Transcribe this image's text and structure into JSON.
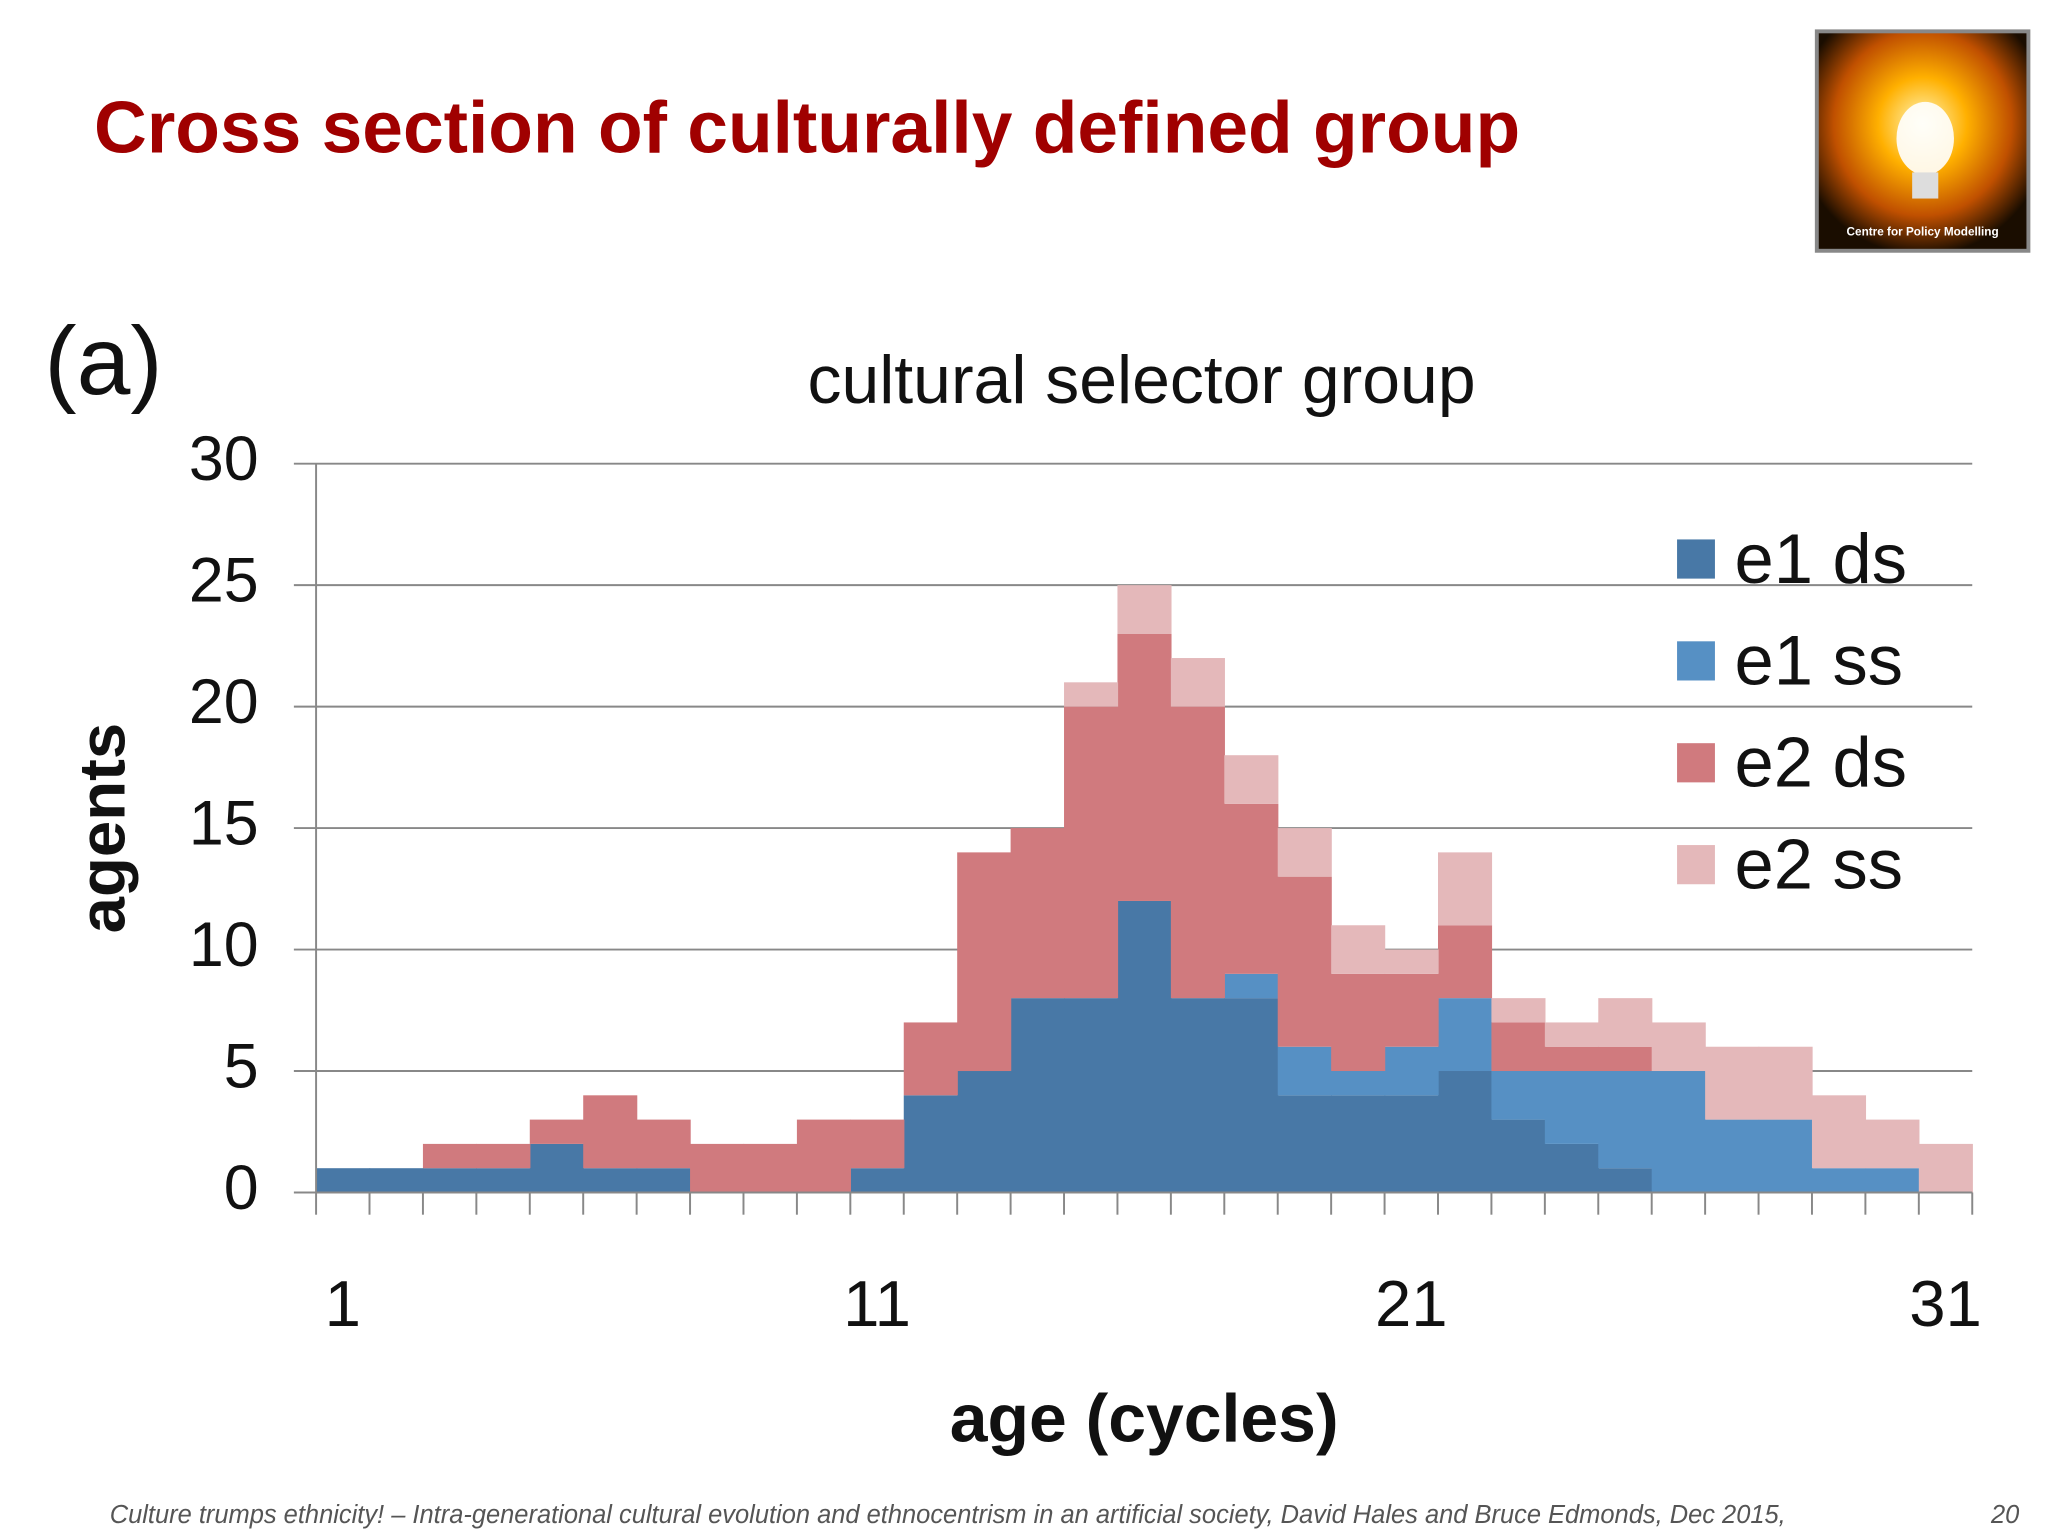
{
  "title": "Cross section of culturally defined group",
  "panel_label": "(a)",
  "logo_text": "Centre for Policy Modelling",
  "footer": "Culture trumps ethnicity! – Intra-generational cultural evolution and ethnocentrism in an artificial society, David Hales and Bruce Edmonds, Dec 2015,",
  "page_number": "20",
  "chart_data": {
    "type": "stacked_bar",
    "title": "cultural selector group",
    "x_label": "age (cycles)",
    "y_label": "agents",
    "categories": [
      1,
      null,
      null,
      null,
      null,
      null,
      null,
      null,
      null,
      null,
      11,
      null,
      null,
      null,
      null,
      null,
      null,
      null,
      null,
      null,
      21,
      null,
      null,
      null,
      null,
      null,
      null,
      null,
      null,
      null,
      31
    ],
    "series": [
      {
        "name": "e1 ds",
        "color": "#4878a6",
        "values": [
          1,
          1,
          1,
          1,
          2,
          1,
          1,
          0,
          0,
          0,
          1,
          4,
          5,
          8,
          8,
          12,
          8,
          8,
          4,
          4,
          4,
          5,
          3,
          2,
          1,
          0,
          0,
          0,
          0,
          0,
          0
        ]
      },
      {
        "name": "e1 ss",
        "color": "#5690c4",
        "values": [
          0,
          0,
          0,
          0,
          0,
          0,
          0,
          0,
          0,
          0,
          0,
          0,
          0,
          0,
          0,
          0,
          0,
          1,
          2,
          1,
          2,
          3,
          2,
          3,
          4,
          5,
          3,
          3,
          1,
          1,
          0
        ]
      },
      {
        "name": "e2 ds",
        "color": "#d07a7e",
        "values": [
          0,
          0,
          1,
          1,
          1,
          3,
          2,
          2,
          2,
          3,
          2,
          3,
          9,
          7,
          12,
          11,
          12,
          7,
          7,
          4,
          3,
          3,
          2,
          1,
          1,
          0,
          0,
          0,
          0,
          0,
          0
        ]
      },
      {
        "name": "e2 ss",
        "color": "#e4b8ba",
        "values": [
          0,
          0,
          0,
          0,
          0,
          0,
          0,
          0,
          0,
          0,
          0,
          0,
          0,
          0,
          1,
          2,
          2,
          2,
          2,
          2,
          1,
          3,
          1,
          1,
          2,
          2,
          3,
          3,
          3,
          2,
          2
        ]
      }
    ],
    "ylim": [
      0,
      30
    ],
    "yticks": [
      0,
      5,
      10,
      15,
      20,
      25,
      30
    ],
    "grid": true,
    "legend": "upper right"
  }
}
